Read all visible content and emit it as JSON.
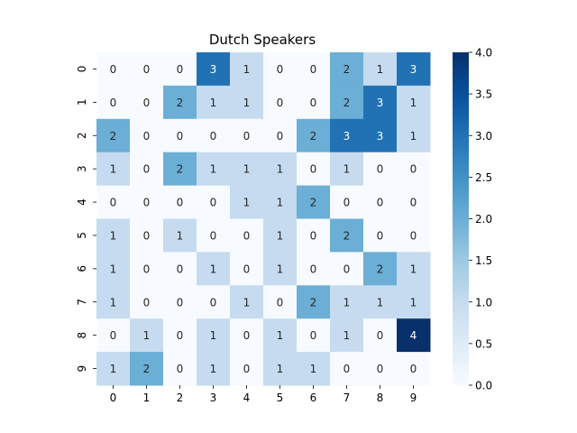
{
  "chart_data": {
    "type": "heatmap",
    "title": "Dutch Speakers",
    "x_tick_labels": [
      "0",
      "1",
      "2",
      "3",
      "4",
      "5",
      "6",
      "7",
      "8",
      "9"
    ],
    "y_tick_labels": [
      "0",
      "1",
      "2",
      "3",
      "4",
      "5",
      "6",
      "7",
      "8",
      "9"
    ],
    "values": [
      [
        0,
        0,
        0,
        3,
        1,
        0,
        0,
        2,
        1,
        3
      ],
      [
        0,
        0,
        2,
        1,
        1,
        0,
        0,
        2,
        3,
        1
      ],
      [
        2,
        0,
        0,
        0,
        0,
        0,
        2,
        3,
        3,
        1
      ],
      [
        1,
        0,
        2,
        1,
        1,
        1,
        0,
        1,
        0,
        0
      ],
      [
        0,
        0,
        0,
        0,
        1,
        1,
        2,
        0,
        0,
        0
      ],
      [
        1,
        0,
        1,
        0,
        0,
        1,
        0,
        2,
        0,
        0
      ],
      [
        1,
        0,
        0,
        1,
        0,
        1,
        0,
        0,
        2,
        1
      ],
      [
        1,
        0,
        0,
        0,
        1,
        0,
        2,
        1,
        1,
        1
      ],
      [
        0,
        1,
        0,
        1,
        0,
        1,
        0,
        1,
        0,
        4
      ],
      [
        1,
        2,
        0,
        1,
        0,
        1,
        1,
        0,
        0,
        0
      ]
    ],
    "colorbar": {
      "min": 0.0,
      "max": 4.0,
      "tick_labels": [
        "0.0",
        "0.5",
        "1.0",
        "1.5",
        "2.0",
        "2.5",
        "3.0",
        "3.5",
        "4.0"
      ]
    },
    "colormap": "Blues",
    "colors": {
      "low": "#f7fbff",
      "high": "#08306b"
    }
  }
}
